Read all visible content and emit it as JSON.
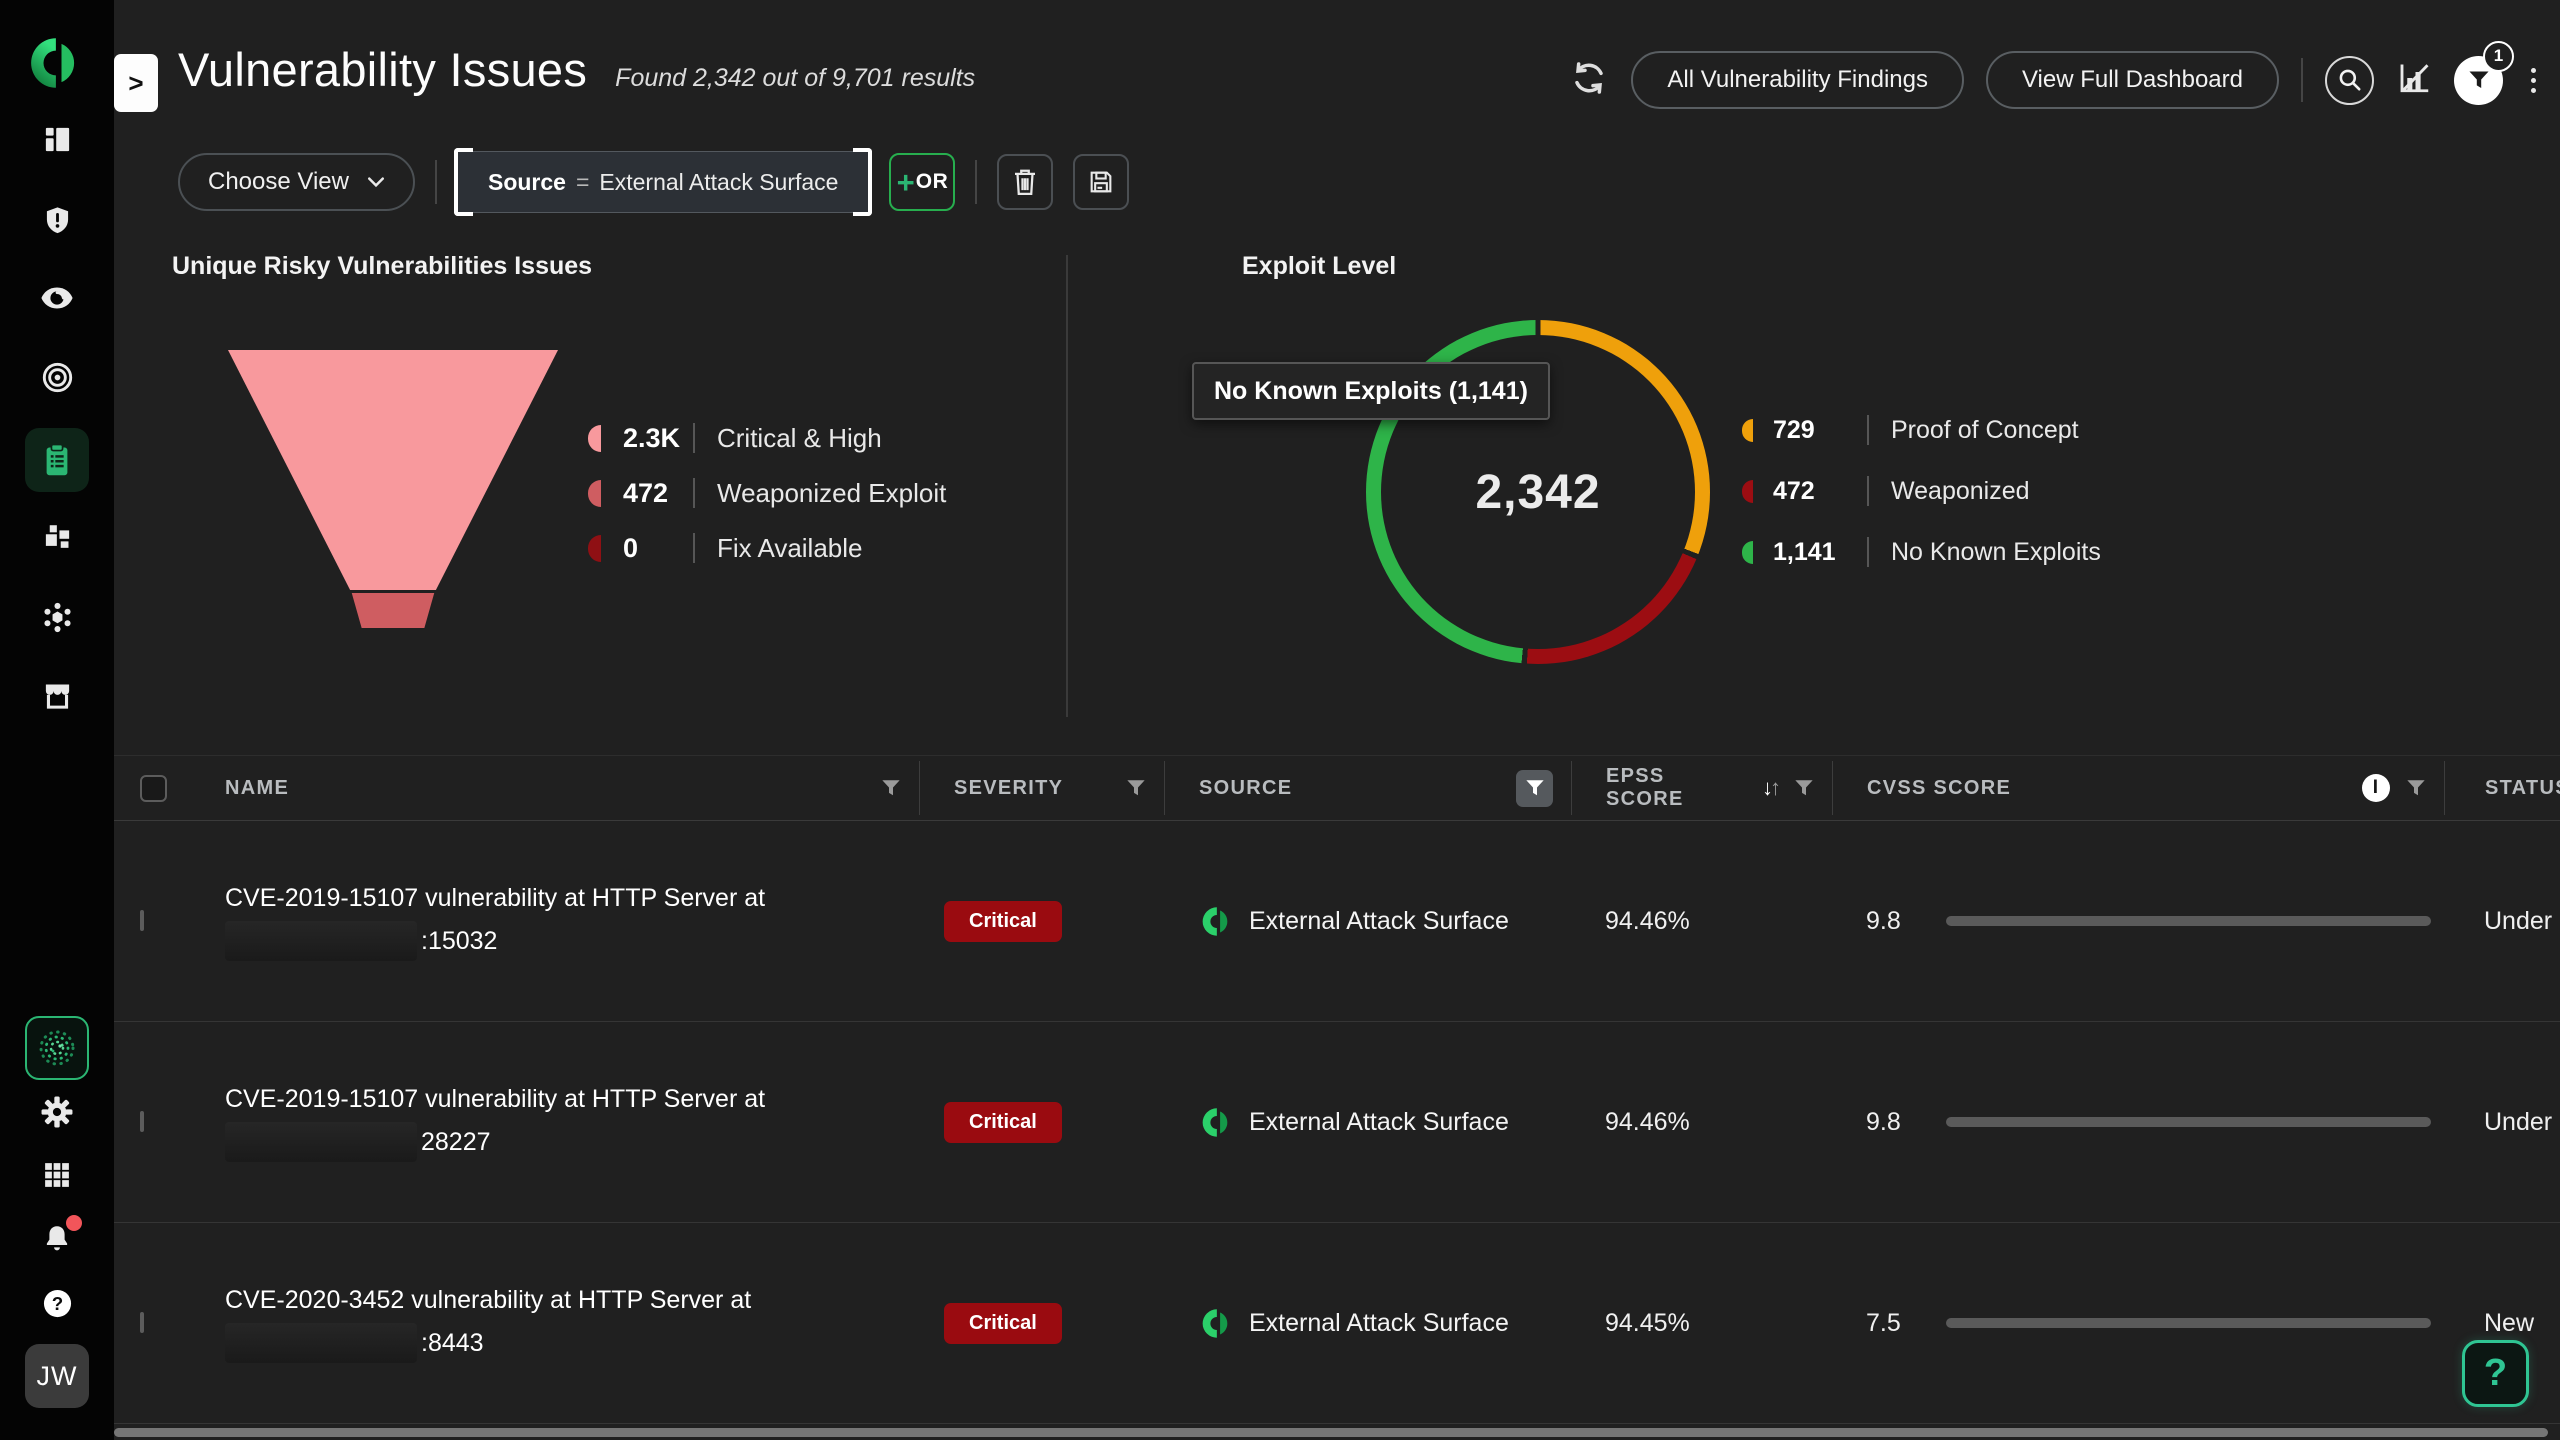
{
  "header": {
    "title": "Vulnerability Issues",
    "results": "Found 2,342 out of 9,701 results",
    "expand": ">",
    "buttons": {
      "all_findings": "All Vulnerability Findings",
      "view_dashboard": "View Full Dashboard"
    },
    "filter_count": "1"
  },
  "filter_bar": {
    "choose_view": "Choose View",
    "chip_field": "Source",
    "chip_operator": "=",
    "chip_value": "External Attack Surface",
    "or_plus": "+",
    "or_label": "OR"
  },
  "funnel_panel": {
    "title": "Unique Risky Vulnerabilities Issues",
    "tier_colors": [
      "#f8999d",
      "#cf5d61"
    ],
    "legend": [
      {
        "value": "2.3K",
        "label": "Critical & High",
        "color": "#f8999d"
      },
      {
        "value": "472",
        "label": "Weaponized Exploit",
        "color": "#cf5d61"
      },
      {
        "value": "0",
        "label": "Fix Available",
        "color": "#8f1014"
      }
    ]
  },
  "exploit_panel": {
    "title": "Exploit Level",
    "total": "2,342",
    "tooltip": "No Known Exploits (1,141)",
    "segments": [
      {
        "value": 729,
        "display": "729",
        "label": "Proof of Concept",
        "color": "#efa00b"
      },
      {
        "value": 472,
        "display": "472",
        "label": "Weaponized",
        "color": "#9c0d12"
      },
      {
        "value": 1141,
        "display": "1,141",
        "label": "No Known Exploits",
        "color": "#2eb449"
      }
    ]
  },
  "table": {
    "columns": [
      {
        "label": "Name",
        "filter": true
      },
      {
        "label": "Severity",
        "filter": true
      },
      {
        "label": "Source",
        "filter": true,
        "filter_active": true
      },
      {
        "label": "EPSS Score",
        "filter": true,
        "sorted": true
      },
      {
        "label": "CVSS Score",
        "filter": true,
        "info": true
      },
      {
        "label": "Status"
      }
    ],
    "rows": [
      {
        "name_line1": "CVE-2019-15107 vulnerability at HTTP Server at",
        "redacted": true,
        "name_line2_suffix": ":15032",
        "severity": "Critical",
        "severity_color": "#9a0b10",
        "source": "External Attack Surface",
        "epss": "94.46%",
        "cvss": "9.8",
        "cvss_bar_percent": 97,
        "status": "Under Investigation"
      },
      {
        "name_line1": "CVE-2019-15107 vulnerability at HTTP Server at",
        "redacted": true,
        "name_line2_suffix": "28227",
        "severity": "Critical",
        "severity_color": "#9a0b10",
        "source": "External Attack Surface",
        "epss": "94.46%",
        "cvss": "9.8",
        "cvss_bar_percent": 97,
        "status": "Under Investigation"
      },
      {
        "name_line1": "CVE-2020-3452 vulnerability at HTTP Server at",
        "redacted": true,
        "name_line2_suffix": ":8443",
        "severity": "Critical",
        "severity_color": "#9a0b10",
        "source": "External Attack Surface",
        "epss": "94.45%",
        "cvss": "7.5",
        "cvss_bar_percent": 75,
        "status": "New"
      }
    ]
  },
  "sidebar": {
    "avatar": "JW",
    "items": [
      {
        "icon": "app-logo-icon"
      },
      {
        "icon": "dashboard-icon"
      },
      {
        "icon": "shield-alert-icon"
      },
      {
        "icon": "eye-icon"
      },
      {
        "icon": "target-icon"
      },
      {
        "icon": "issues-clipboard-icon",
        "active": true
      },
      {
        "icon": "widgets-icon"
      },
      {
        "icon": "cluster-icon"
      },
      {
        "icon": "storefront-icon"
      },
      {
        "icon": "ai-scan-icon",
        "highlighted": true
      },
      {
        "icon": "settings-gear-icon"
      },
      {
        "icon": "apps-grid-icon"
      },
      {
        "icon": "notifications-bell-icon",
        "has_alert": true
      },
      {
        "icon": "help-circle-icon"
      }
    ]
  },
  "help_button": "?",
  "chart_data": [
    {
      "type": "bar",
      "variant": "funnel",
      "title": "Unique Risky Vulnerabilities Issues",
      "categories": [
        "Critical & High",
        "Weaponized Exploit",
        "Fix Available"
      ],
      "values": [
        2300,
        472,
        0
      ]
    },
    {
      "type": "pie",
      "variant": "donut",
      "title": "Exploit Level",
      "total": 2342,
      "categories": [
        "Proof of Concept",
        "Weaponized",
        "No Known Exploits"
      ],
      "values": [
        729,
        472,
        1141
      ],
      "legend_position": "right"
    }
  ]
}
